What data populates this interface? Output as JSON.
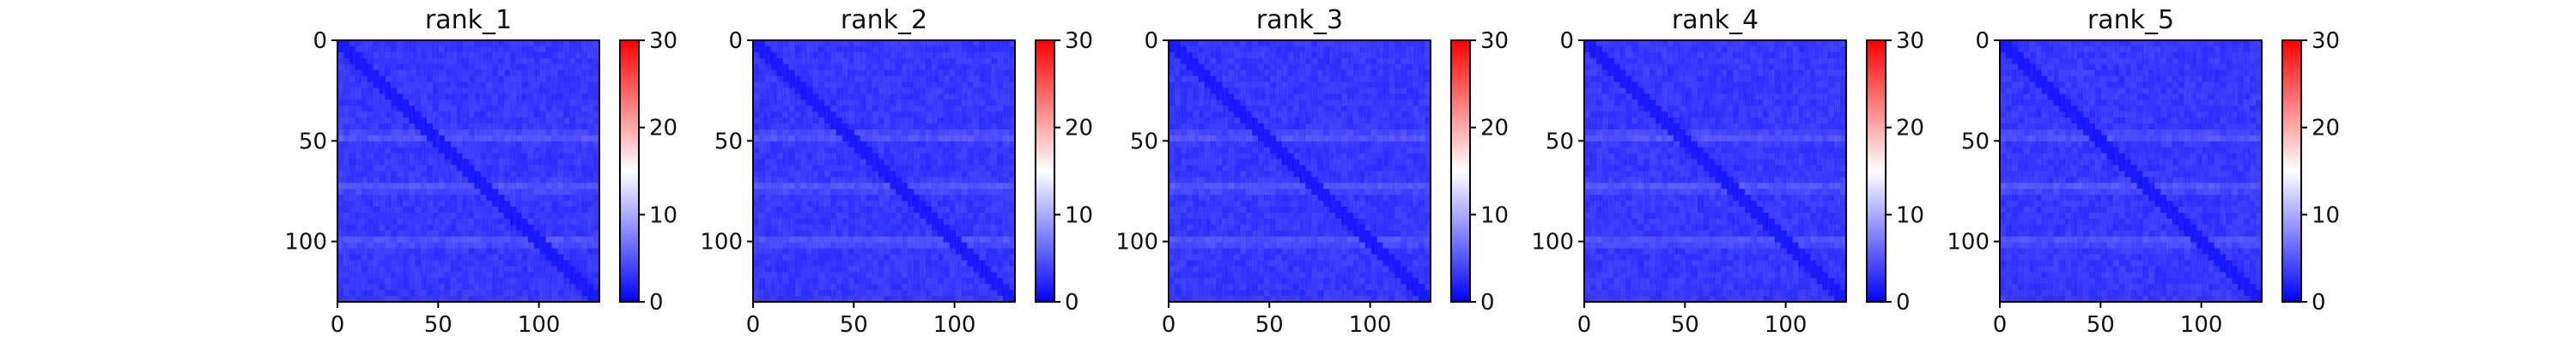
{
  "chart_data": [
    {
      "type": "heatmap",
      "title": "rank_1",
      "xticks": [
        0,
        50,
        100
      ],
      "yticks": [
        0,
        50,
        100
      ],
      "xlim": [
        0,
        130
      ],
      "ylim": [
        130,
        0
      ],
      "colorbar": {
        "ticks": [
          0,
          10,
          20,
          30
        ],
        "range": [
          0,
          30
        ],
        "colors": [
          "#0000ff",
          "#ffffff",
          "#ff0000"
        ]
      },
      "values_summary": "low values (~0-5) throughout; diagonal ~0; faint lighter horizontal bands near rows 48, 73, 100"
    },
    {
      "type": "heatmap",
      "title": "rank_2",
      "xticks": [
        0,
        50,
        100
      ],
      "yticks": [
        0,
        50,
        100
      ],
      "xlim": [
        0,
        130
      ],
      "ylim": [
        130,
        0
      ],
      "colorbar": {
        "ticks": [
          0,
          10,
          20,
          30
        ],
        "range": [
          0,
          30
        ],
        "colors": [
          "#0000ff",
          "#ffffff",
          "#ff0000"
        ]
      },
      "values_summary": "low values (~0-5) throughout; diagonal ~0; faint lighter horizontal bands near rows 48, 73, 100"
    },
    {
      "type": "heatmap",
      "title": "rank_3",
      "xticks": [
        0,
        50,
        100
      ],
      "yticks": [
        0,
        50,
        100
      ],
      "xlim": [
        0,
        130
      ],
      "ylim": [
        130,
        0
      ],
      "colorbar": {
        "ticks": [
          0,
          10,
          20,
          30
        ],
        "range": [
          0,
          30
        ],
        "colors": [
          "#0000ff",
          "#ffffff",
          "#ff0000"
        ]
      },
      "values_summary": "low values (~0-5) throughout; diagonal ~0; faint lighter horizontal bands near rows 48, 73, 100"
    },
    {
      "type": "heatmap",
      "title": "rank_4",
      "xticks": [
        0,
        50,
        100
      ],
      "yticks": [
        0,
        50,
        100
      ],
      "xlim": [
        0,
        130
      ],
      "ylim": [
        130,
        0
      ],
      "colorbar": {
        "ticks": [
          0,
          10,
          20,
          30
        ],
        "range": [
          0,
          30
        ],
        "colors": [
          "#0000ff",
          "#ffffff",
          "#ff0000"
        ]
      },
      "values_summary": "low values (~0-5) throughout; diagonal ~0; faint lighter horizontal bands near rows 48, 73, 100"
    },
    {
      "type": "heatmap",
      "title": "rank_5",
      "xticks": [
        0,
        50,
        100
      ],
      "yticks": [
        0,
        50,
        100
      ],
      "xlim": [
        0,
        130
      ],
      "ylim": [
        130,
        0
      ],
      "colorbar": {
        "ticks": [
          0,
          10,
          20,
          30
        ],
        "range": [
          0,
          30
        ],
        "colors": [
          "#0000ff",
          "#ffffff",
          "#ff0000"
        ]
      },
      "values_summary": "low values (~0-5) throughout; diagonal ~0; faint lighter horizontal bands near rows 48, 73, 100"
    }
  ]
}
